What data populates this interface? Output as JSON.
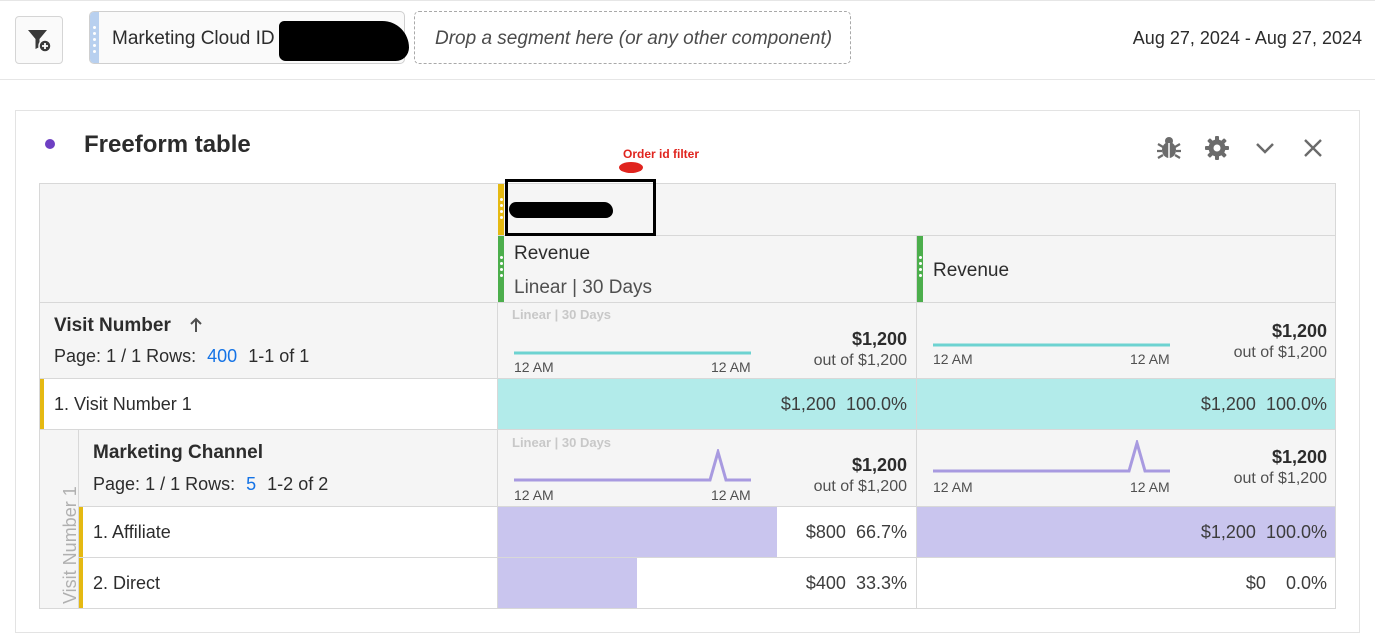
{
  "filter_bar": {
    "segment_label": "Marketing Cloud ID",
    "drop_zone_text": "Drop a segment here (or any other component)",
    "date_range": "Aug 27, 2024 - Aug 27, 2024"
  },
  "panel": {
    "title": "Freeform table",
    "annotation": "Order id filter",
    "icons": [
      "bug-icon",
      "gear-icon",
      "chevron-down-icon",
      "close-icon"
    ],
    "accent_color": "#6e3fc3"
  },
  "table": {
    "columns": [
      {
        "metric": "Revenue",
        "attribution": "Linear | 30 Days"
      },
      {
        "metric": "Revenue"
      }
    ],
    "dimension_header": {
      "name": "Visit Number",
      "sort_icon": "arrow-up-icon",
      "page_label": "Page:",
      "page_value": "1 / 1",
      "rows_label": "Rows:",
      "rows_value": "400",
      "range": "1-1 of 1",
      "faint_label": "Linear | 30 Days",
      "col1_total": "$1,200",
      "col1_sub": "out of $1,200",
      "col2_total": "$1,200",
      "col2_sub": "out of $1,200",
      "tick_start": "12 AM",
      "tick_end": "12 AM"
    },
    "row1": {
      "label": "1.  Visit Number 1",
      "col1_value": "$1,200",
      "col1_pct": "100.0%",
      "col2_value": "$1,200",
      "col2_pct": "100.0%",
      "col1_fraction": 1.0,
      "col2_fraction": 1.0
    },
    "breakdown": {
      "side_label": "Visit Number 1",
      "name": "Marketing Channel",
      "page_label": "Page:",
      "page_value": "1 / 1",
      "rows_label": "Rows:",
      "rows_value": "5",
      "range": "1-2 of 2",
      "faint_label": "Linear | 30 Days",
      "col1_total": "$1,200",
      "col1_sub": "out of $1,200",
      "col2_total": "$1,200",
      "col2_sub": "out of $1,200",
      "tick_start": "12 AM",
      "tick_end": "12 AM",
      "rows": [
        {
          "label": "1.  Affiliate",
          "col1_value": "$800",
          "col1_pct": "66.7%",
          "col1_fraction": 0.667,
          "col2_value": "$1,200",
          "col2_pct": "100.0%",
          "col2_fraction": 1.0
        },
        {
          "label": "2.  Direct",
          "col1_value": "$400",
          "col1_pct": "33.3%",
          "col1_fraction": 0.333,
          "col2_value": "$0",
          "col2_pct": "0.0%",
          "col2_fraction": 0.0
        }
      ]
    },
    "colors": {
      "teal_fill": "#b2ebea",
      "teal_line": "#6dd3d1",
      "purple_fill": "#c9c5ee",
      "purple_line": "#a89ae0",
      "yellow_marker": "#e5b912",
      "green_marker": "#4cae4c"
    }
  }
}
